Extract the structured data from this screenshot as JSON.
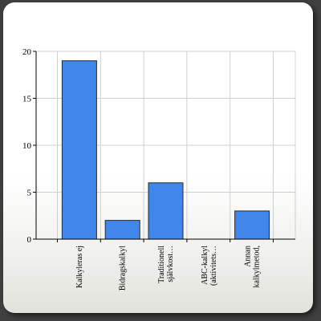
{
  "chart_data": {
    "type": "bar",
    "categories": [
      [
        "Kalkyleras ej"
      ],
      [
        "Bidragskalkyl"
      ],
      [
        "Traditionell",
        "självkost…"
      ],
      [
        "ABC-kalkyl",
        "(aktivitets…"
      ],
      [
        "Annan",
        "kalkylmetod,"
      ]
    ],
    "values": [
      19,
      2,
      6,
      0,
      3
    ],
    "ylim": [
      0,
      20
    ],
    "yticks": [
      0,
      5,
      10,
      15,
      20
    ],
    "title": "",
    "xlabel": "",
    "ylabel": "",
    "grid": true,
    "legend": "none",
    "colors": {
      "bar_fill": "#4186ea",
      "bar_stroke": "#2a2a2a",
      "grid": "#cfcfcf",
      "axis": "#000000"
    }
  }
}
